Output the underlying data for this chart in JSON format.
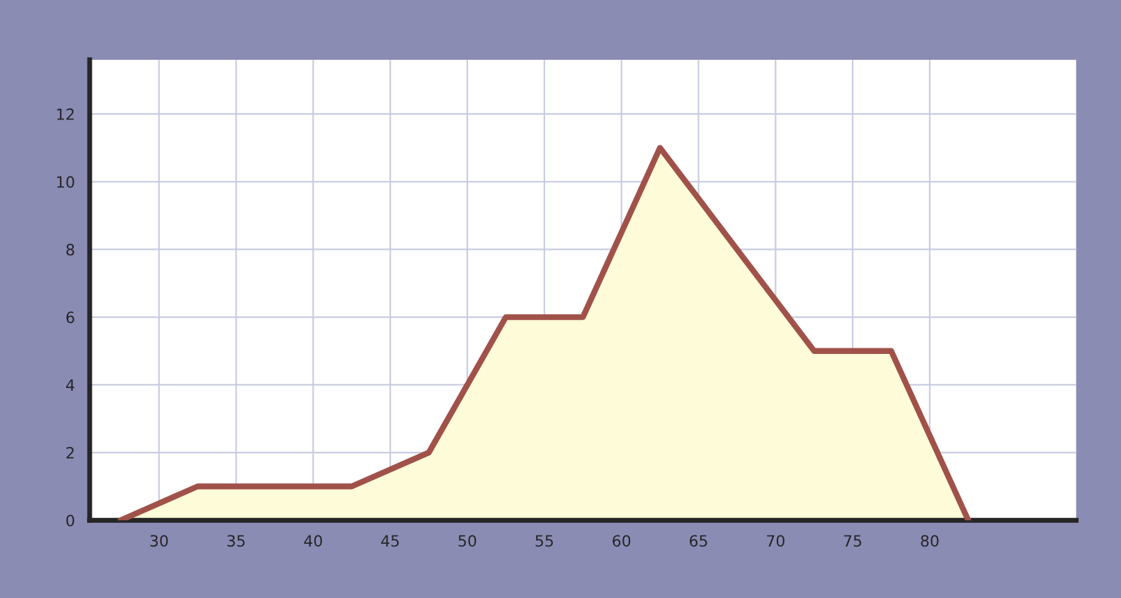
{
  "chart_data": {
    "type": "area",
    "x": [
      27.5,
      32.5,
      37.5,
      42.5,
      47.5,
      52.5,
      57.5,
      62.5,
      67.5,
      72.5,
      77.5,
      82.5
    ],
    "series": [
      {
        "color": "#a0524a",
        "values": [
          0,
          1,
          1,
          1,
          2,
          6,
          6,
          11,
          8,
          5,
          5,
          0
        ]
      }
    ],
    "xlim": [
      25.5,
      89.5
    ],
    "xticks": [
      30,
      35,
      40,
      45,
      50,
      55,
      60,
      65,
      70,
      75,
      80
    ],
    "ylim": [
      0,
      13.6
    ],
    "yticks": [
      0,
      2,
      4,
      6,
      8,
      10,
      12
    ],
    "grid": true,
    "marker": "none",
    "line_style": "solid"
  }
}
